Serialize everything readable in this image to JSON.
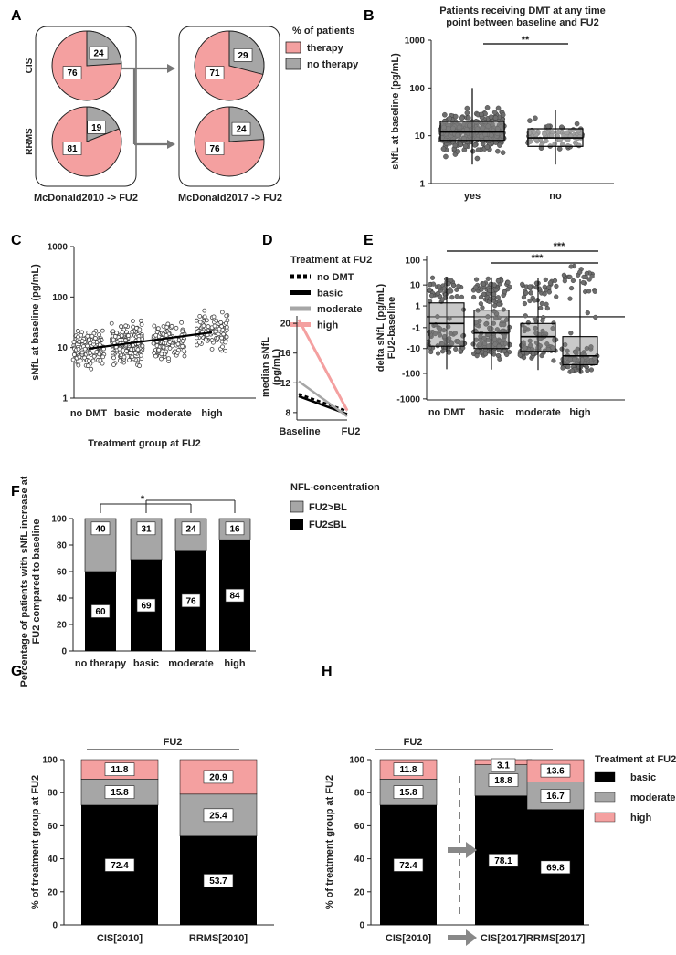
{
  "colors": {
    "therapy": "#F4A0A0",
    "no_therapy": "#A6A6A6",
    "basic": "#000000",
    "moderate": "#A6A6A6",
    "high": "#F4A0A0"
  },
  "chart_data": [
    {
      "panel": "A",
      "type": "pie",
      "legend_title": "% of patients",
      "legend": [
        "therapy",
        "no therapy"
      ],
      "row_labels": [
        "CIS",
        "RRMS"
      ],
      "captions": [
        "McDonald2010 -> FU2",
        "McDonald2017 -> FU2"
      ],
      "pies": [
        {
          "group": "CIS",
          "criteria": "McDonald2010",
          "therapy": 76,
          "no_therapy": 24
        },
        {
          "group": "RRMS",
          "criteria": "McDonald2010",
          "therapy": 81,
          "no_therapy": 19
        },
        {
          "group": "CIS",
          "criteria": "McDonald2017",
          "therapy": 71,
          "no_therapy": 29
        },
        {
          "group": "RRMS",
          "criteria": "McDonald2017",
          "therapy": 76,
          "no_therapy": 24
        }
      ]
    },
    {
      "panel": "B",
      "type": "scatter",
      "title_lines": [
        "Patients receiving DMT at any time",
        "point between baseline and FU2"
      ],
      "ylabel": "sNfL at baseline (pg/mL)",
      "yscale": "log",
      "ylim": [
        1,
        1000
      ],
      "yticks": [
        "1",
        "10",
        "100",
        "1000"
      ],
      "categories": [
        "yes",
        "no"
      ],
      "significance": "**",
      "boxes": [
        {
          "q1": 8,
          "median": 12,
          "q3": 20,
          "min": 2.5,
          "max": 100
        },
        {
          "q1": 6,
          "median": 9,
          "q3": 14,
          "min": 2.5,
          "max": 35
        }
      ]
    },
    {
      "panel": "C",
      "type": "scatter",
      "ylabel": "sNfL at baseline (pg/mL)",
      "xlabel": "Treatment group at FU2",
      "yscale": "log",
      "ylim": [
        1,
        1000
      ],
      "yticks": [
        "1",
        "10",
        "100",
        "1000"
      ],
      "categories": [
        "no DMT",
        "basic",
        "moderate",
        "high"
      ],
      "trend": {
        "start": 9.5,
        "end": 20
      }
    },
    {
      "panel": "D",
      "type": "line",
      "legend_title": "Treatment at FU2",
      "legend": [
        "no DMT",
        "basic",
        "moderate",
        "high"
      ],
      "ylabel": "median sNfL (pg/mL)",
      "ylim": [
        7,
        21
      ],
      "yticks": [
        "8",
        "12",
        "16",
        "20"
      ],
      "x": [
        "Baseline",
        "FU2"
      ],
      "series": [
        {
          "name": "no DMT",
          "values": [
            10.5,
            8.2
          ]
        },
        {
          "name": "basic",
          "values": [
            10.2,
            7.8
          ]
        },
        {
          "name": "moderate",
          "values": [
            12.2,
            7.5
          ]
        },
        {
          "name": "high",
          "values": [
            20.5,
            8.3
          ]
        }
      ]
    },
    {
      "panel": "E",
      "type": "scatter",
      "ylabel": "delta sNfL (pg/mL) FU2-baseline",
      "yscale": "symlog",
      "yticks": [
        "100",
        "10",
        "1",
        "-1",
        "-10",
        "-100",
        "-1000"
      ],
      "categories": [
        "no DMT",
        "basic",
        "moderate",
        "high"
      ],
      "significance": [
        "***",
        "***"
      ],
      "boxes": [
        {
          "q1": -8,
          "median": -0.5,
          "q3": 1.5
        },
        {
          "q1": -10,
          "median": -2,
          "q3": 0.5
        },
        {
          "q1": -13,
          "median": -3,
          "q3": -0.5
        },
        {
          "q1": -45,
          "median": -20,
          "q3": -3
        }
      ]
    },
    {
      "panel": "F",
      "type": "bar",
      "ylabel_lines": [
        "Percentage of patients with sNfL increase at",
        "FU2 compared to baseline"
      ],
      "legend_title": "NFL-concentration",
      "legend": [
        "FU2>BL",
        "FU2≤BL"
      ],
      "ylim": [
        0,
        100
      ],
      "yticks": [
        "0",
        "20",
        "40",
        "60",
        "80",
        "100"
      ],
      "categories": [
        "no therapy",
        "basic",
        "moderate",
        "high"
      ],
      "series": [
        {
          "name": "FU2≤BL",
          "values": [
            60,
            69,
            76,
            84
          ]
        },
        {
          "name": "FU2>BL",
          "values": [
            40,
            31,
            24,
            16
          ]
        }
      ],
      "significance": "*"
    },
    {
      "panel": "G",
      "type": "bar",
      "ylabel": "% of treatment group at FU2",
      "header": "FU2",
      "ylim": [
        0,
        100
      ],
      "yticks": [
        "0",
        "20",
        "40",
        "60",
        "80",
        "100"
      ],
      "categories": [
        "CIS[2010]",
        "RRMS[2010]"
      ],
      "series": [
        {
          "name": "basic",
          "values": [
            72.4,
            53.7
          ]
        },
        {
          "name": "moderate",
          "values": [
            15.8,
            25.4
          ]
        },
        {
          "name": "high",
          "values": [
            11.8,
            20.9
          ]
        }
      ],
      "labels": {
        "basic": [
          "72.4",
          "53.7"
        ],
        "moderate": [
          "15.8",
          "25.4"
        ],
        "high": [
          "11.8",
          "20.9"
        ]
      }
    },
    {
      "panel": "H",
      "type": "bar",
      "ylabel": "% of treatment group at FU2",
      "header": "FU2",
      "legend_title": "Treatment at FU2",
      "legend": [
        "basic",
        "moderate",
        "high"
      ],
      "ylim": [
        0,
        100
      ],
      "yticks": [
        "0",
        "20",
        "40",
        "60",
        "80",
        "100"
      ],
      "categories": [
        "CIS[2010]",
        "CIS[2017]",
        "RRMS[2017]"
      ],
      "series": [
        {
          "name": "basic",
          "values": [
            72.4,
            78.1,
            69.8
          ]
        },
        {
          "name": "moderate",
          "values": [
            15.8,
            18.8,
            16.7
          ]
        },
        {
          "name": "high",
          "values": [
            11.8,
            3.1,
            13.6
          ]
        }
      ],
      "labels": {
        "basic": [
          "72.4",
          "78.1",
          "69.8"
        ],
        "moderate": [
          "15.8",
          "18.8",
          "16.7"
        ],
        "high": [
          "11.8",
          "3.1",
          "13.6"
        ]
      }
    }
  ]
}
